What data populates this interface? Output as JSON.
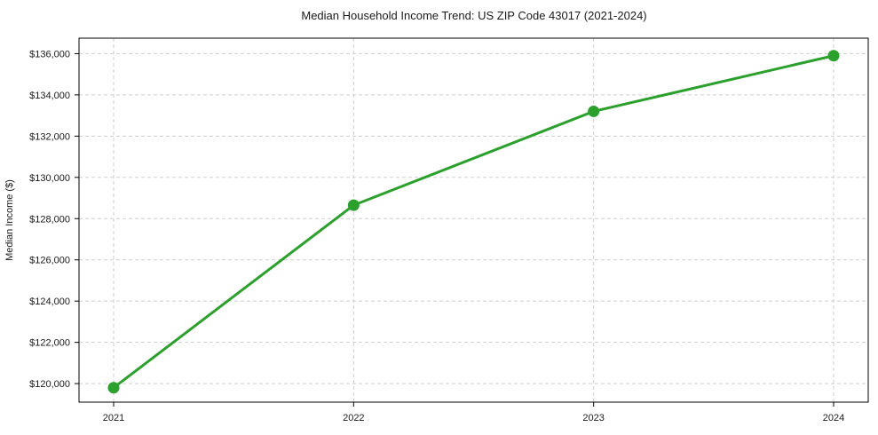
{
  "chart_data": {
    "type": "line",
    "title": "Median Household Income Trend: US ZIP Code 43017 (2021-2024)",
    "xlabel": "",
    "ylabel": "Median Income ($)",
    "categories": [
      "2021",
      "2022",
      "2023",
      "2024"
    ],
    "series": [
      {
        "name": "Median Income",
        "values": [
          119800,
          128650,
          133200,
          135900
        ]
      }
    ],
    "ylim": [
      119100,
      136750
    ],
    "ytick_step": 2000,
    "ytick_prefix": "$",
    "ytick_labels": [
      "$120,000",
      "$122,000",
      "$124,000",
      "$126,000",
      "$128,000",
      "$130,000",
      "$132,000",
      "$134,000",
      "$136,000"
    ],
    "grid": true,
    "grid_style": "dashed",
    "legend": "none",
    "marker": "circle",
    "colors": {
      "line": "#2ca02c",
      "marker": "#2ca02c",
      "grid": "#cfcfcf",
      "axis": "#000000",
      "text": "#1a1a1a",
      "background": "#ffffff"
    }
  }
}
